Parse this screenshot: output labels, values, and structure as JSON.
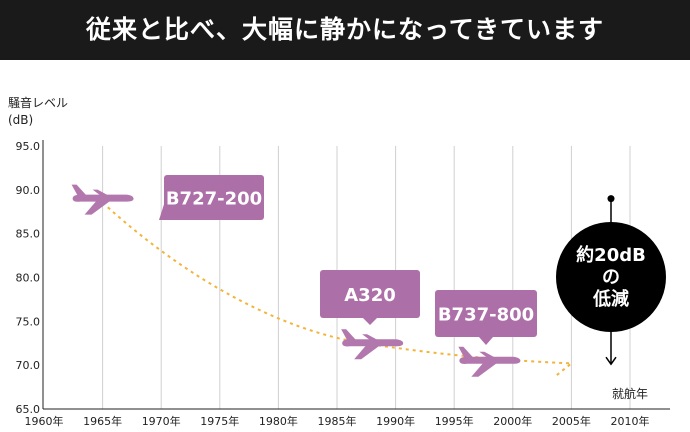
{
  "header": {
    "title": "従来と比べ、大幅に静かになってきています"
  },
  "chart_data": {
    "type": "scatter",
    "ylabel": "騒音レベル",
    "yunit": "(dB)",
    "xunit": "就航年",
    "ylim": [
      65.0,
      95.0
    ],
    "xlim": [
      1960,
      2010
    ],
    "y_ticks": [
      "65.0",
      "70.0",
      "75.0",
      "80.0",
      "85.0",
      "90.0",
      "95.0"
    ],
    "x_ticks": [
      "1960年",
      "1965年",
      "1970年",
      "1975年",
      "1980年",
      "1985年",
      "1990年",
      "1995年",
      "2000年",
      "2005年",
      "2010年"
    ],
    "grid": "vertical",
    "points": [
      {
        "label": "B727-200",
        "x": 1965,
        "y": 89.0
      },
      {
        "label": "A320",
        "x": 1988,
        "y": 72.5
      },
      {
        "label": "B737-800",
        "x": 1998,
        "y": 70.5
      }
    ],
    "annotation": {
      "text_lines": [
        "約20dB",
        "の",
        "低減"
      ],
      "from": 89.0,
      "to": 70.0
    },
    "colors": {
      "point": "#b278ae",
      "callout": "#ad6fa8",
      "trend": "#f2b43a",
      "annotation": "#000000"
    }
  }
}
